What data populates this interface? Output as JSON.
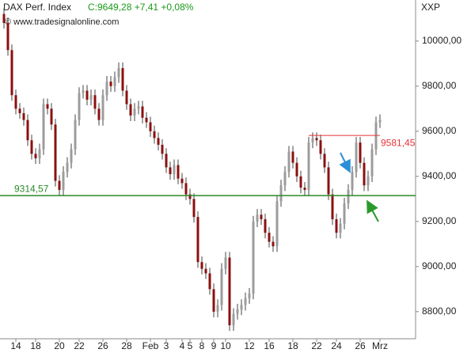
{
  "chart_data": {
    "type": "candlestick",
    "title": "DAX Perf. Index",
    "subtitle": "C:9649,28 +7,41 +0,08%",
    "source": "© www.tradesignalonline.com",
    "axis_name": "XXP",
    "up_color": "#9c9c9c",
    "down_color": "#8b1010",
    "wick_color": "#444444",
    "ylim": [
      8680,
      10182
    ],
    "yticks": [
      {
        "value": 8800,
        "label": "8800,00"
      },
      {
        "value": 9000,
        "label": "9000,00"
      },
      {
        "value": 9200,
        "label": "9200,00"
      },
      {
        "value": 9400,
        "label": "9400,00"
      },
      {
        "value": 9600,
        "label": "9600,00"
      },
      {
        "value": 9800,
        "label": "9800,00"
      },
      {
        "value": 10000,
        "label": "10000,00"
      }
    ],
    "categories": [
      null,
      null,
      null,
      "14",
      null,
      null,
      null,
      null,
      "18",
      null,
      null,
      null,
      null,
      null,
      "20",
      null,
      null,
      null,
      null,
      "22",
      null,
      null,
      null,
      null,
      null,
      "26",
      null,
      null,
      null,
      null,
      null,
      "28",
      null,
      null,
      null,
      null,
      null,
      "Feb",
      null,
      null,
      null,
      "3",
      null,
      null,
      null,
      "4",
      null,
      "5",
      null,
      null,
      "8",
      null,
      null,
      "9",
      null,
      null,
      "10",
      null,
      null,
      null,
      null,
      null,
      "12",
      null,
      null,
      null,
      null,
      "16",
      null,
      null,
      null,
      null,
      null,
      "18",
      null,
      null,
      null,
      null,
      null,
      "22",
      null,
      null,
      null,
      null,
      "24",
      null,
      null,
      null,
      null,
      null,
      "26",
      null,
      null,
      null,
      null,
      "Mrz"
    ],
    "open": [
      10120,
      10080,
      9960,
      9760,
      9700,
      9680,
      9650,
      9560,
      9500,
      9480,
      9520,
      9720,
      9700,
      9630,
      9380,
      9340,
      9420,
      9460,
      9520,
      9650,
      9770,
      9780,
      9740,
      9760,
      9700,
      9650,
      9760,
      9820,
      9800,
      9840,
      9880,
      9780,
      9720,
      9670,
      9700,
      9710,
      9660,
      9640,
      9600,
      9570,
      9540,
      9500,
      9440,
      9410,
      9450,
      9390,
      9370,
      9320,
      9300,
      9220,
      9020,
      8990,
      8970,
      8900,
      8800,
      8830,
      8990,
      9040,
      8740,
      8790,
      8810,
      8830,
      8860,
      8880,
      9200,
      9230,
      9210,
      9150,
      9110,
      9090,
      9290,
      9360,
      9420,
      9510,
      9460,
      9400,
      9350,
      9340,
      9550,
      9570,
      9560,
      9500,
      9440,
      9320,
      9210,
      9150,
      9190,
      9280,
      9340,
      9420,
      9550,
      9460,
      9360,
      9400,
      9520,
      9640
    ],
    "high": [
      10145,
      10105,
      9985,
      9785,
      9725,
      9705,
      9675,
      9585,
      9525,
      9545,
      9745,
      9745,
      9725,
      9655,
      9405,
      9445,
      9485,
      9545,
      9675,
      9795,
      9805,
      9805,
      9785,
      9785,
      9725,
      9785,
      9845,
      9845,
      9865,
      9905,
      9905,
      9805,
      9745,
      9725,
      9735,
      9735,
      9685,
      9665,
      9625,
      9595,
      9565,
      9525,
      9465,
      9475,
      9475,
      9415,
      9395,
      9345,
      9325,
      9245,
      9045,
      9015,
      8995,
      8925,
      8855,
      9015,
      9065,
      9065,
      8815,
      8835,
      8855,
      8885,
      8905,
      9225,
      9255,
      9255,
      9235,
      9175,
      9135,
      9315,
      9385,
      9445,
      9535,
      9535,
      9485,
      9425,
      9375,
      9575,
      9595,
      9595,
      9585,
      9525,
      9465,
      9345,
      9235,
      9215,
      9305,
      9365,
      9445,
      9575,
      9575,
      9485,
      9425,
      9545,
      9665,
      9675
    ],
    "low": [
      10055,
      9935,
      9735,
      9675,
      9655,
      9625,
      9535,
      9475,
      9455,
      9455,
      9495,
      9675,
      9605,
      9355,
      9315,
      9315,
      9395,
      9435,
      9495,
      9625,
      9745,
      9715,
      9715,
      9675,
      9625,
      9625,
      9735,
      9775,
      9775,
      9815,
      9755,
      9695,
      9645,
      9645,
      9675,
      9635,
      9615,
      9575,
      9545,
      9515,
      9475,
      9415,
      9385,
      9385,
      9365,
      9345,
      9295,
      9275,
      9195,
      8995,
      8965,
      8945,
      8875,
      8775,
      8775,
      8805,
      8965,
      8715,
      8715,
      8765,
      8785,
      8805,
      8835,
      8855,
      9175,
      9185,
      9125,
      9085,
      9065,
      9065,
      9265,
      9335,
      9395,
      9435,
      9375,
      9325,
      9315,
      9315,
      9525,
      9535,
      9475,
      9415,
      9295,
      9185,
      9125,
      9125,
      9165,
      9255,
      9315,
      9395,
      9435,
      9335,
      9335,
      9375,
      9495,
      9615
    ],
    "close": [
      10080,
      9960,
      9760,
      9700,
      9680,
      9650,
      9560,
      9500,
      9480,
      9520,
      9720,
      9700,
      9630,
      9380,
      9340,
      9420,
      9460,
      9520,
      9650,
      9770,
      9780,
      9740,
      9760,
      9700,
      9650,
      9760,
      9820,
      9800,
      9840,
      9880,
      9780,
      9720,
      9670,
      9700,
      9710,
      9660,
      9640,
      9600,
      9570,
      9540,
      9500,
      9440,
      9410,
      9450,
      9390,
      9370,
      9320,
      9300,
      9220,
      9020,
      8990,
      8970,
      8900,
      8800,
      8830,
      8990,
      9040,
      8740,
      8790,
      8810,
      8830,
      8860,
      8880,
      9200,
      9230,
      9210,
      9150,
      9110,
      9090,
      9290,
      9360,
      9420,
      9510,
      9460,
      9400,
      9350,
      9340,
      9550,
      9570,
      9560,
      9500,
      9440,
      9320,
      9210,
      9150,
      9190,
      9280,
      9340,
      9420,
      9550,
      9460,
      9360,
      9400,
      9520,
      9640,
      9650
    ],
    "levels": [
      {
        "value": 9314.57,
        "label": "9314,57",
        "color": "#2a8a2a"
      },
      {
        "value": 9581.45,
        "label": "9581,45",
        "color": "#e8333a"
      }
    ]
  }
}
